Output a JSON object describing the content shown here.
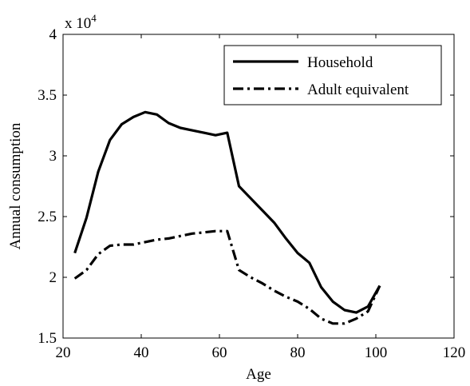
{
  "chart_data": {
    "type": "line",
    "title": "",
    "xlabel": "Age",
    "ylabel": "Annual consumption",
    "y_multiplier_label": "x 10",
    "y_multiplier_exponent": "4",
    "xlim": [
      20,
      120
    ],
    "ylim": [
      1.5,
      4
    ],
    "xticks": [
      20,
      40,
      60,
      80,
      100,
      120
    ],
    "yticks": [
      1.5,
      2,
      2.5,
      3,
      3.5,
      4
    ],
    "xtick_labels": [
      "20",
      "40",
      "60",
      "80",
      "100",
      "120"
    ],
    "ytick_labels": [
      "1.5",
      "2",
      "2.5",
      "3",
      "3.5",
      "4"
    ],
    "grid": false,
    "legend_position": "top-right",
    "series": [
      {
        "name": "Household",
        "style": "solid",
        "color": "#000000",
        "x": [
          23,
          26,
          29,
          32,
          35,
          38,
          41,
          44,
          47,
          50,
          53,
          56,
          59,
          62,
          65,
          68,
          71,
          74,
          77,
          80,
          83,
          86,
          89,
          92,
          95,
          98,
          101
        ],
        "y": [
          2.2,
          2.49,
          2.87,
          3.13,
          3.26,
          3.32,
          3.36,
          3.34,
          3.27,
          3.23,
          3.21,
          3.19,
          3.17,
          3.19,
          2.75,
          2.65,
          2.55,
          2.45,
          2.32,
          2.2,
          2.12,
          1.92,
          1.8,
          1.73,
          1.71,
          1.76,
          1.93
        ]
      },
      {
        "name": "Adult equivalent",
        "style": "dashdot",
        "color": "#000000",
        "x": [
          23,
          26,
          29,
          32,
          35,
          38,
          41,
          44,
          47,
          50,
          53,
          56,
          59,
          62,
          65,
          68,
          71,
          74,
          77,
          80,
          83,
          86,
          89,
          92,
          95,
          98,
          101
        ],
        "y": [
          1.99,
          2.06,
          2.19,
          2.26,
          2.27,
          2.27,
          2.29,
          2.31,
          2.32,
          2.34,
          2.36,
          2.37,
          2.38,
          2.38,
          2.06,
          2.0,
          1.95,
          1.89,
          1.84,
          1.8,
          1.74,
          1.66,
          1.62,
          1.62,
          1.66,
          1.72,
          1.93
        ]
      }
    ]
  }
}
